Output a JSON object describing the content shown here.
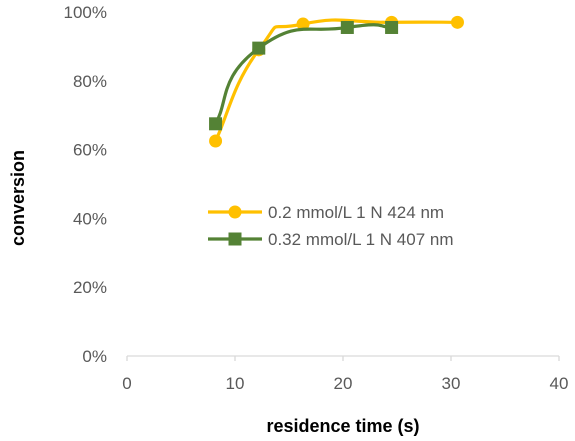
{
  "chart_data": {
    "type": "line",
    "title": "",
    "xlabel": "residence time (s)",
    "ylabel": "conversion",
    "xlim": [
      0,
      40
    ],
    "ylim": [
      0,
      100
    ],
    "x_ticks": [
      0,
      10,
      20,
      30,
      40
    ],
    "y_ticks": [
      0,
      20,
      40,
      60,
      80,
      100
    ],
    "y_tick_format": "percent",
    "grid": false,
    "smoothed": true,
    "legend_position": "center",
    "series": [
      {
        "name": "0.2 mmol/L 1 N 424 nm",
        "color": "#FFC000",
        "marker": "circle",
        "x": [
          8.2,
          12.2,
          16.3,
          24.5,
          30.6
        ],
        "y": [
          62.5,
          89,
          96.5,
          97,
          97
        ]
      },
      {
        "name": "0.32 mmol/L 1 N 407 nm",
        "color": "#548235",
        "marker": "square",
        "x": [
          8.2,
          12.2,
          20.4,
          24.5
        ],
        "y": [
          67.5,
          89.5,
          95.5,
          95.5
        ]
      }
    ]
  }
}
